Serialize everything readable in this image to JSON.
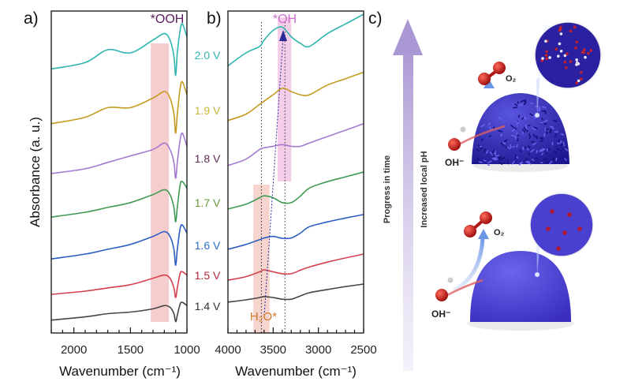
{
  "chart_data": [
    {
      "panel": "a)",
      "type": "line",
      "xlabel": "Wavenumber (cm⁻¹)",
      "ylabel": "Absorbance (a. u.)",
      "xlim": [
        2200,
        1000
      ],
      "ylim": [
        0,
        100
      ],
      "xticks": [
        "2000",
        "1500",
        "1000"
      ],
      "xtick_values": [
        2000,
        1500,
        1000
      ],
      "grid": false,
      "annotation": "*OOH",
      "highlight_band": [
        1320,
        1160
      ],
      "x": [
        2200,
        1900,
        1700,
        1500,
        1300,
        1200,
        1150,
        1115,
        1100,
        1085,
        1060,
        1040,
        1000
      ],
      "series": [
        {
          "name": "2.0 V",
          "color": "#2fb5ae",
          "label_color": "#2fb5ae",
          "values": [
            82,
            84,
            88,
            87,
            91,
            93,
            91,
            86,
            80,
            87,
            94,
            96,
            92
          ]
        },
        {
          "name": "1.9 V",
          "color": "#c49a1e",
          "label_color": "#c8b63a",
          "values": [
            65,
            67,
            70,
            70,
            73,
            75,
            73,
            68,
            62,
            68,
            76,
            78,
            74
          ]
        },
        {
          "name": "1.8 V",
          "color": "#a47ad0",
          "label_color": "#5a2a55",
          "values": [
            49.5,
            51,
            53,
            55,
            57,
            59,
            57,
            53,
            48,
            53,
            60,
            62,
            58
          ]
        },
        {
          "name": "1.7 V",
          "color": "#3f9a55",
          "label_color": "#6a9a3a",
          "values": [
            36,
            37.5,
            39,
            40.5,
            43,
            44.5,
            43,
            39,
            34.5,
            39,
            46,
            47,
            45
          ]
        },
        {
          "name": "1.6 V",
          "color": "#2d5cc2",
          "label_color": "#2f6fc8",
          "values": [
            23,
            24.5,
            26,
            27.5,
            30,
            31.5,
            30,
            26,
            21,
            26,
            32.5,
            33.5,
            31
          ]
        },
        {
          "name": "1.5 V",
          "color": "#d4404e",
          "label_color": "#b02a3a",
          "values": [
            12,
            13,
            14,
            15,
            17,
            18,
            17,
            14,
            11,
            14,
            18.5,
            19,
            18
          ]
        },
        {
          "name": "1.4 V",
          "color": "#454545",
          "label_color": "#333333",
          "values": [
            4,
            5,
            6,
            6.5,
            7.5,
            8.5,
            8,
            6,
            3.5,
            5.5,
            9,
            9.5,
            8.5
          ]
        }
      ]
    },
    {
      "panel": "b)",
      "type": "line",
      "xlabel": "Wavenumber (cm⁻¹)",
      "xlim": [
        4000,
        2500
      ],
      "ylim": [
        0,
        100
      ],
      "xticks": [
        "4000",
        "3500",
        "3000",
        "2500"
      ],
      "xtick_values": [
        4000,
        3500,
        3000,
        2500
      ],
      "grid": false,
      "annotations": {
        "oh": "*OH",
        "h2o": "H₂O*"
      },
      "oh_band": [
        3450,
        3300
      ],
      "h2o_band": [
        3720,
        3540
      ],
      "dotted_lines": [
        3630,
        3370
      ],
      "x": [
        4000,
        3800,
        3650,
        3600,
        3500,
        3400,
        3300,
        3200,
        3100,
        2900,
        2700,
        2500
      ],
      "series": [
        {
          "name": "2.0 V",
          "color": "#2fb5ae",
          "values": [
            83,
            87,
            89,
            91,
            94,
            95,
            92,
            90,
            89,
            93,
            96,
            99
          ]
        },
        {
          "name": "1.9 V",
          "color": "#c49a1e",
          "values": [
            66,
            68,
            71,
            72,
            74,
            76,
            75,
            74,
            74,
            77,
            79,
            81
          ]
        },
        {
          "name": "1.8 V",
          "color": "#a47ad0",
          "values": [
            52,
            54,
            57,
            57.5,
            58,
            58.5,
            58,
            58,
            59,
            61,
            63,
            65
          ]
        },
        {
          "name": "1.7 V",
          "color": "#3f9a55",
          "values": [
            38.5,
            40,
            42,
            42.6,
            42,
            40.5,
            40.5,
            42.5,
            45,
            47,
            48.5,
            50
          ]
        },
        {
          "name": "1.6 V",
          "color": "#2d5cc2",
          "values": [
            26,
            27.5,
            29,
            29.5,
            30,
            29.4,
            29.5,
            31,
            33,
            34.5,
            35.7,
            36.8
          ]
        },
        {
          "name": "1.5 V",
          "color": "#d4404e",
          "values": [
            16.4,
            17.5,
            19,
            19.6,
            19,
            18.4,
            18.4,
            19.5,
            20.5,
            22,
            23.3,
            24.5
          ]
        },
        {
          "name": "1.4 V",
          "color": "#454545",
          "values": [
            9.6,
            10.3,
            11,
            11.3,
            11,
            10.5,
            10.5,
            11.5,
            12.5,
            13.5,
            14.4,
            15.2
          ]
        }
      ]
    }
  ],
  "panel_c": {
    "label": "c)",
    "arrow_label_1": "Progress in time",
    "arrow_label_2": "Increased local pH",
    "o2_label": "O₂",
    "oh_label": "OH⁻"
  }
}
